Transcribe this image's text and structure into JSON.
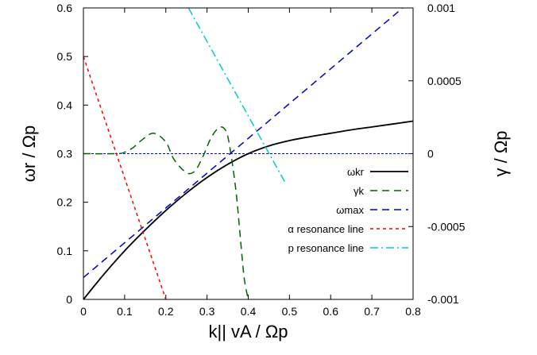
{
  "chart_data": {
    "type": "line",
    "xlabel": "k|| vA / Ωp",
    "ylabel_left": "ωr / Ωp",
    "ylabel_right": "γ / Ωp",
    "xlim": [
      0,
      0.8
    ],
    "ylim_left": [
      0,
      0.6
    ],
    "ylim_right": [
      -0.001,
      0.001
    ],
    "x_ticks": [
      "0",
      "0.1",
      "0.2",
      "0.3",
      "0.4",
      "0.5",
      "0.6",
      "0.7",
      "0.8"
    ],
    "y_ticks_left": [
      "0",
      "0.1",
      "0.2",
      "0.3",
      "0.4",
      "0.5",
      "0.6"
    ],
    "y_ticks_right": [
      "-0.001",
      "-0.0005",
      "0",
      "0.0005",
      "0.001"
    ],
    "grid": false,
    "legend_position": "right-middle",
    "zero_reference_line": {
      "axis": "right",
      "value": 0,
      "color": "#0000ff"
    },
    "series": [
      {
        "name": "ωkr",
        "axis": "left",
        "color": "#000000",
        "dash": "solid",
        "x": [
          0,
          0.05,
          0.1,
          0.15,
          0.2,
          0.25,
          0.3,
          0.35,
          0.4,
          0.45,
          0.5,
          0.55,
          0.6,
          0.65,
          0.7,
          0.75,
          0.8
        ],
        "y": [
          0,
          0.052,
          0.1,
          0.143,
          0.183,
          0.219,
          0.251,
          0.278,
          0.3,
          0.316,
          0.327,
          0.335,
          0.342,
          0.349,
          0.355,
          0.361,
          0.367
        ]
      },
      {
        "name": "γk",
        "axis": "right",
        "color": "#006400",
        "dash": "long-dash",
        "x": [
          0,
          0.08,
          0.1,
          0.12,
          0.14,
          0.17,
          0.2,
          0.22,
          0.25,
          0.27,
          0.29,
          0.31,
          0.33,
          0.345,
          0.355,
          0.37,
          0.38,
          0.39,
          0.4
        ],
        "y": [
          0,
          0,
          1e-05,
          4e-05,
          9e-05,
          0.00014,
          8e-05,
          -4e-05,
          -0.00013,
          -0.00012,
          -2e-05,
          0.00011,
          0.00018,
          0.00016,
          5e-05,
          -0.00025,
          -0.00055,
          -0.00085,
          -0.001
        ]
      },
      {
        "name": "ωmax",
        "axis": "left",
        "color": "#0000cc",
        "dash": "dash",
        "x": [
          0,
          0.8
        ],
        "y": [
          0.045,
          0.618
        ]
      },
      {
        "name": "α resonance line",
        "axis": "left",
        "color": "#ff0000",
        "dash": "short-dash",
        "x": [
          0,
          0.2
        ],
        "y": [
          0.5,
          0
        ]
      },
      {
        "name": "p resonance line",
        "axis": "left",
        "color": "#00cccc",
        "dash": "dash-dot",
        "x": [
          0.255,
          0.49
        ],
        "y": [
          0.6,
          0.24
        ]
      }
    ]
  }
}
